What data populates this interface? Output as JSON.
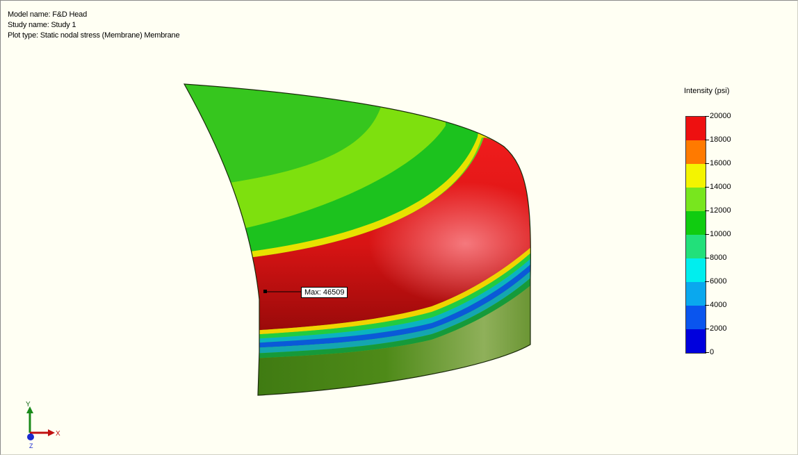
{
  "header": {
    "model_line": "Model name: F&D Head",
    "study_line": "Study name: Study 1",
    "plot_line": "Plot type: Static nodal stress (Membrane) Membrane"
  },
  "probe": {
    "label": "Max: 46509"
  },
  "legend": {
    "title": "Intensity (psi)",
    "ticks": [
      "20000",
      "18000",
      "16000",
      "14000",
      "12000",
      "10000",
      "8000",
      "6000",
      "4000",
      "2000",
      "0"
    ],
    "band_colors": [
      "#ee1010",
      "#ff7a00",
      "#f4f400",
      "#78e61e",
      "#10cc10",
      "#22e07a",
      "#00eeee",
      "#0aa8ee",
      "#0a55ee",
      "#0000dd"
    ]
  },
  "triad": {
    "y_label": "Y",
    "x_label": "X",
    "z_label": "Z"
  },
  "colors": {
    "viewport_background": "#fffff3",
    "max_stress": "#ee1010",
    "wall_green": "#5a8a1e"
  }
}
